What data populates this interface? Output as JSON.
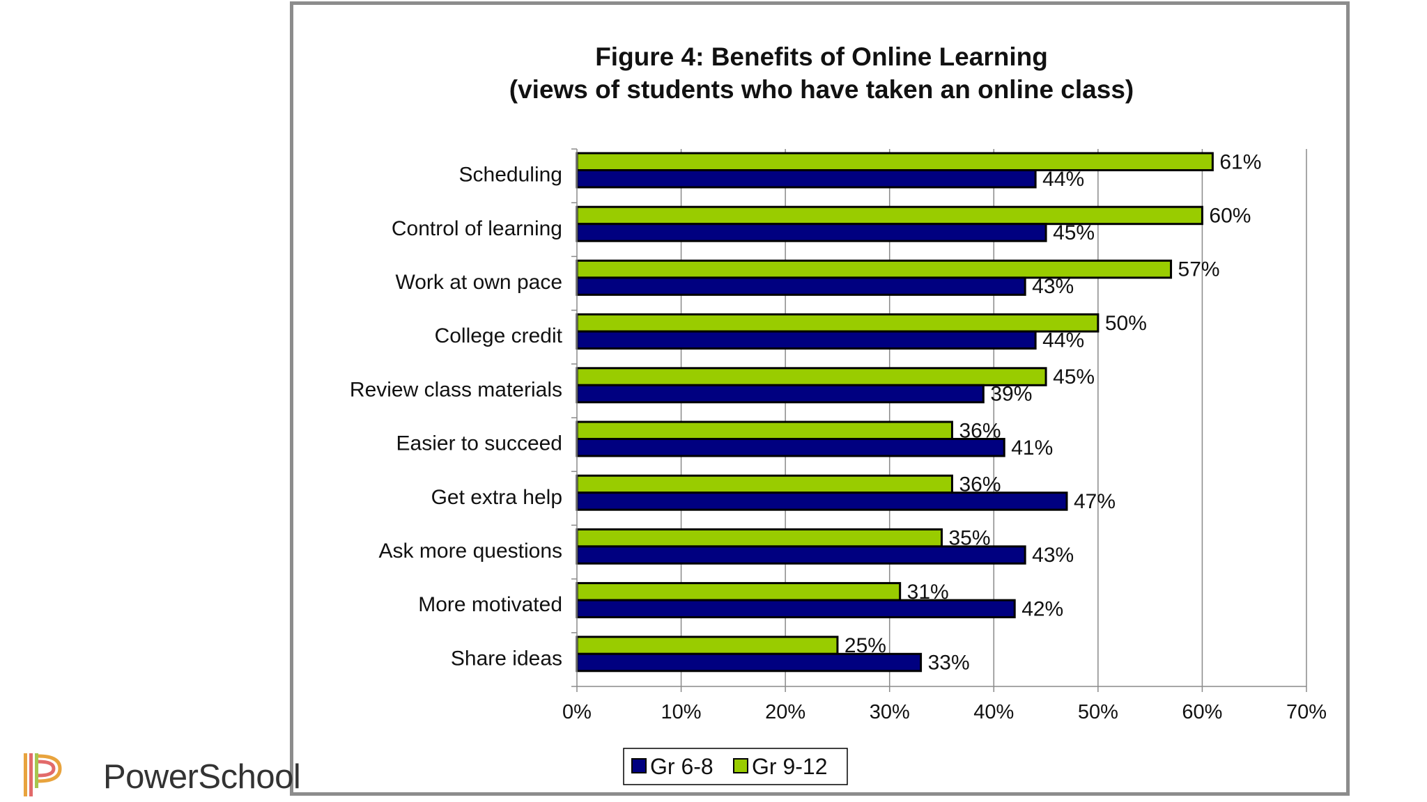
{
  "logo": {
    "text": "PowerSchool",
    "icon": "powerschool-p-logo-icon"
  },
  "chart_data": {
    "type": "bar",
    "orientation": "horizontal",
    "title": "Figure 4: Benefits of Online Learning",
    "subtitle": "(views of students who have taken an online class)",
    "categories": [
      "Scheduling",
      "Control of learning",
      "Work at own pace",
      "College credit",
      "Review class materials",
      "Easier to succeed",
      "Get extra help",
      "Ask more questions",
      "More motivated",
      "Share ideas"
    ],
    "series": [
      {
        "name": "Gr 9-12",
        "color": "#99cc00",
        "values": [
          61,
          60,
          57,
          50,
          45,
          36,
          36,
          35,
          31,
          25
        ]
      },
      {
        "name": "Gr 6-8",
        "color": "#000080",
        "values": [
          44,
          45,
          43,
          44,
          39,
          41,
          47,
          43,
          42,
          33
        ]
      }
    ],
    "x_ticks": [
      "0%",
      "10%",
      "20%",
      "30%",
      "40%",
      "50%",
      "60%",
      "70%"
    ],
    "xlim": [
      0,
      70
    ],
    "value_suffix": "%",
    "grid": "vertical",
    "legend": {
      "placement": "bottom",
      "order": [
        "Gr 6-8",
        "Gr 9-12"
      ]
    }
  }
}
